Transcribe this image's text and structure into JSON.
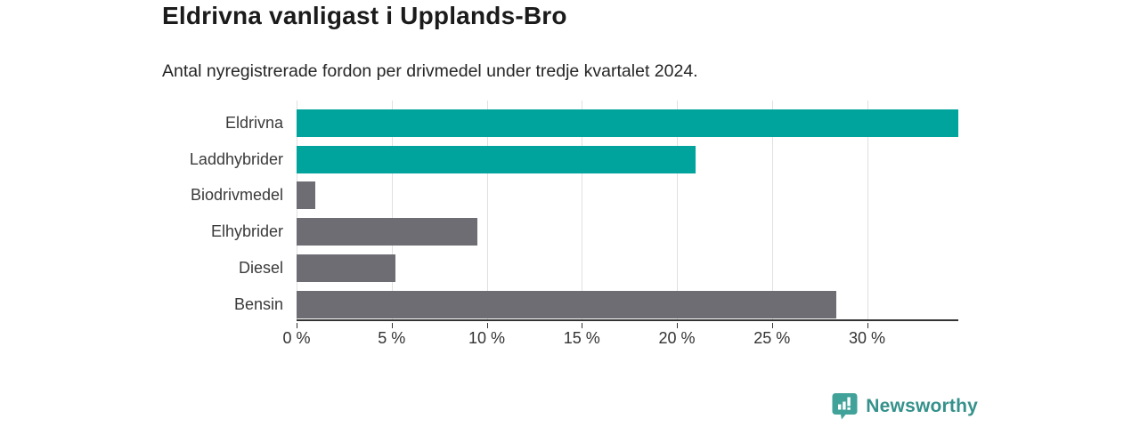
{
  "chart_data": {
    "type": "bar",
    "orientation": "horizontal",
    "title": "Eldrivna vanligast i Upplands-Bro",
    "subtitle": "Antal nyregistrerade fordon per drivmedel under tredje kvartalet 2024.",
    "categories": [
      "Eldrivna",
      "Laddhybrider",
      "Biodrivmedel",
      "Elhybrider",
      "Diesel",
      "Bensin"
    ],
    "values": [
      34.8,
      21.0,
      1.0,
      9.5,
      5.2,
      28.4
    ],
    "unit": "%",
    "bar_colors": [
      "#00a49c",
      "#00a49c",
      "#6d6d73",
      "#6d6d73",
      "#6d6d73",
      "#6d6d73"
    ],
    "highlight_color": "#00a49c",
    "default_color": "#6d6d73",
    "xlim": [
      0,
      34.8
    ],
    "x_ticks": [
      0,
      5,
      10,
      15,
      20,
      25,
      30
    ],
    "x_tick_labels": [
      "0 %",
      "5 %",
      "10 %",
      "15 %",
      "20 %",
      "25 %",
      "30 %"
    ],
    "grid": true,
    "gridline_color": "#e0e0e0",
    "axis_color": "#333333",
    "legend": "none"
  },
  "branding": {
    "logo_text": "Newsworthy",
    "logo_text_color": "#35918b",
    "logo_icon_color": "#41a29a"
  }
}
